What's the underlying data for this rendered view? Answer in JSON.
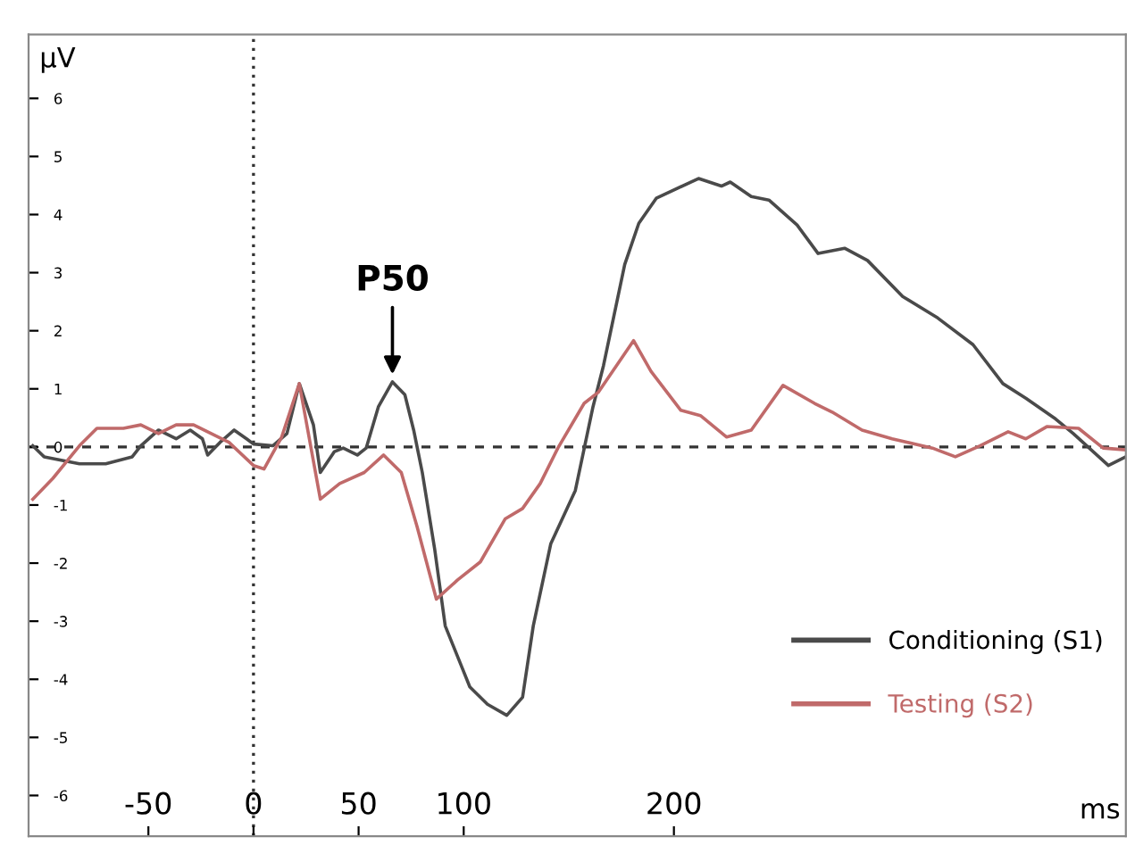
{
  "chart_data": {
    "type": "line",
    "xlabel": "ms",
    "ylabel": "μV",
    "xlim": [
      -107,
      415
    ],
    "ylim": [
      -6.7,
      7.1
    ],
    "xticks": [
      -50,
      0,
      50,
      100,
      200
    ],
    "yticks": [
      -6,
      -5,
      -4,
      -3,
      -2,
      -1,
      0,
      1,
      2,
      3,
      4,
      5,
      6
    ],
    "grid": false,
    "legend": "bottom right",
    "ref_lines": [
      {
        "axis": "x",
        "value": 0,
        "line_style": "dotted",
        "color": "#333333"
      },
      {
        "axis": "y",
        "value": 0,
        "line_style": "dashed",
        "color": "#333333"
      }
    ],
    "annotations": [
      {
        "text": "P50",
        "x": 66.1,
        "y": 1.12
      }
    ],
    "series": [
      {
        "name": "Conditioning (S1)",
        "color": "#4a4a4a",
        "x": [
          -105,
          -99.6,
          -82.8,
          -70.3,
          -57.7,
          -53.6,
          -45.2,
          -36.8,
          -30.1,
          -24.3,
          -21.8,
          -15.9,
          -9.2,
          -3.3,
          0,
          9.2,
          15.9,
          21.8,
          28.5,
          31.8,
          38.5,
          42.7,
          49.4,
          53.6,
          59.4,
          66.1,
          72.0,
          76.2,
          80.3,
          86.2,
          91.2,
          102.9,
          111.3,
          120.5,
          128.0,
          133.1,
          141.4,
          153.1,
          161.5,
          166.5,
          176.6,
          183.3,
          191.6,
          211.7,
          222.6,
          226.8,
          236.8,
          245.2,
          258.6,
          268.6,
          281.2,
          292.1,
          308.8,
          325.5,
          342.3,
          356.5,
          367.4,
          381.6,
          390.0,
          406.7,
          415.0
        ],
        "values": [
          0.02,
          -0.17,
          -0.29,
          -0.29,
          -0.17,
          0.02,
          0.29,
          0.14,
          0.29,
          0.14,
          -0.14,
          0.08,
          0.29,
          0.14,
          0.05,
          0.02,
          0.23,
          1.09,
          0.38,
          -0.44,
          -0.08,
          -0.02,
          -0.14,
          -0.02,
          0.69,
          1.12,
          0.9,
          0.29,
          -0.44,
          -1.76,
          -3.08,
          -4.13,
          -4.43,
          -4.62,
          -4.31,
          -3.08,
          -1.67,
          -0.75,
          0.69,
          1.4,
          3.14,
          3.85,
          4.28,
          4.62,
          4.49,
          4.56,
          4.31,
          4.25,
          3.82,
          3.33,
          3.42,
          3.21,
          2.59,
          2.22,
          1.76,
          1.09,
          0.84,
          0.48,
          0.23,
          -0.32,
          -0.17
        ]
      },
      {
        "name": "Testing (S2)",
        "color": "#c06a6a",
        "x": [
          -105,
          -95.4,
          -82.8,
          -74.5,
          -61.9,
          -53.6,
          -45.2,
          -36.8,
          -28.5,
          -20.1,
          -11.7,
          0,
          5.0,
          13.4,
          21.8,
          31.8,
          41.0,
          52.7,
          61.9,
          70.3,
          77.8,
          87.0,
          97.1,
          107.9,
          119.7,
          128.0,
          136.4,
          144.8,
          157.3,
          164.0,
          180.8,
          189.1,
          203.3,
          212.6,
          225.1,
          236.8,
          251.9,
          266.9,
          275.3,
          289.5,
          303.8,
          323.0,
          333.9,
          345.6,
          359.0,
          367.4,
          377.4,
          392.5,
          404.2,
          415.0
        ],
        "values": [
          -0.9,
          -0.54,
          0.02,
          0.32,
          0.32,
          0.38,
          0.23,
          0.38,
          0.38,
          0.23,
          0.08,
          -0.32,
          -0.38,
          0.17,
          1.09,
          -0.9,
          -0.63,
          -0.44,
          -0.14,
          -0.44,
          -1.37,
          -2.62,
          -2.29,
          -1.98,
          -1.24,
          -1.06,
          -0.63,
          -0.02,
          0.75,
          0.94,
          1.83,
          1.3,
          0.63,
          0.54,
          0.17,
          0.29,
          1.06,
          0.75,
          0.6,
          0.29,
          0.14,
          -0.02,
          -0.17,
          0.02,
          0.26,
          0.14,
          0.35,
          0.32,
          -0.02,
          -0.05
        ]
      }
    ]
  }
}
